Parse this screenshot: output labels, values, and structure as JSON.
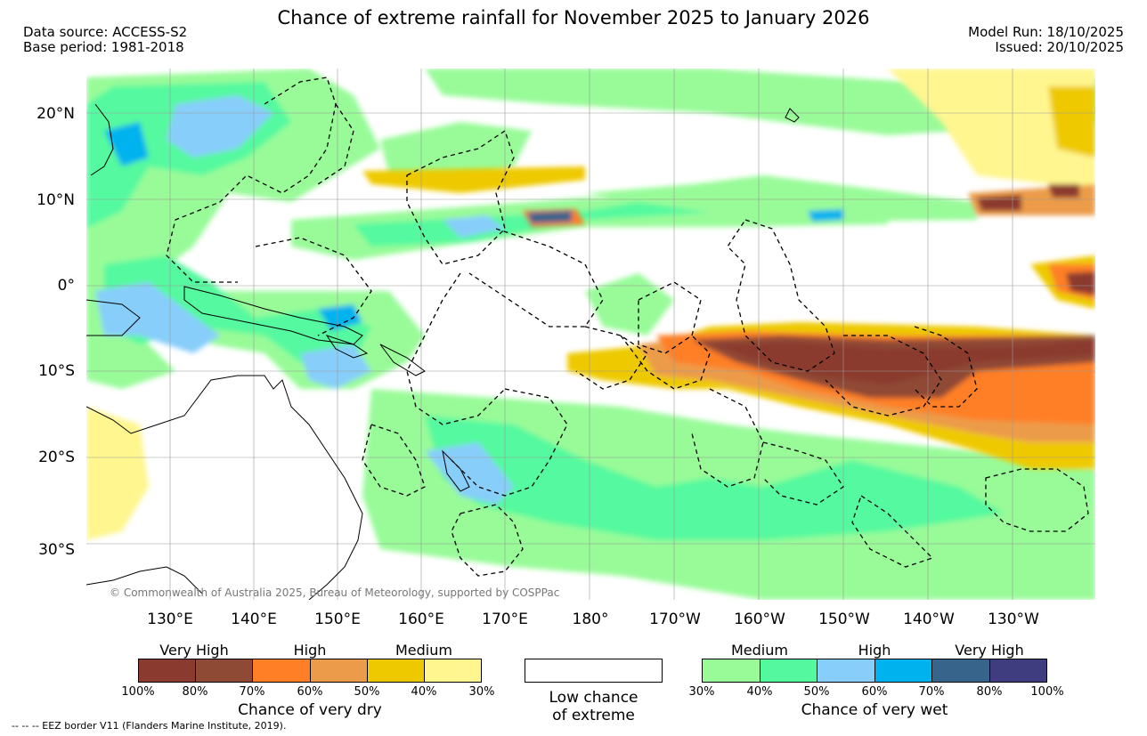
{
  "header": {
    "title": "Chance of extreme rainfall for November 2025 to January 2026",
    "data_source": "Data source: ACCESS-S2",
    "base_period": "Base period: 1981-2018",
    "model_run": "Model Run: 18/10/2025",
    "issued": "Issued: 20/10/2025"
  },
  "map": {
    "lat_labels": [
      "20°N",
      "10°N",
      "0°",
      "10°S",
      "20°S",
      "30°S"
    ],
    "lon_labels": [
      "130°E",
      "140°E",
      "150°E",
      "160°E",
      "170°E",
      "180°",
      "170°W",
      "160°W",
      "150°W",
      "140°W",
      "130°W"
    ],
    "copyright": "© Commonwealth of Australia 2025, Bureau of Meteorology, supported by COSPPac"
  },
  "legend": {
    "dry": {
      "headings": [
        "Very High",
        "High",
        "Medium"
      ],
      "ticks": [
        "100%",
        "80%",
        "70%",
        "60%",
        "50%",
        "40%",
        "30%"
      ],
      "title": "Chance of very dry",
      "colors": [
        "#8b3a2f",
        "#8f4a36",
        "#ff7f27",
        "#ec9b4a",
        "#eec900",
        "#fff68f"
      ]
    },
    "low": {
      "line1": "Low chance",
      "line2": "of extreme"
    },
    "wet": {
      "headings": [
        "Medium",
        "High",
        "Very High"
      ],
      "ticks": [
        "30%",
        "40%",
        "50%",
        "60%",
        "70%",
        "80%",
        "100%"
      ],
      "title": "Chance of very wet",
      "colors": [
        "#98fb98",
        "#54f99f",
        "#87cefa",
        "#00b2ee",
        "#36648b",
        "#3f3d80"
      ]
    }
  },
  "footnote": "--  --  -- EEZ border V11 (Flanders Marine Institute, 2019)."
}
